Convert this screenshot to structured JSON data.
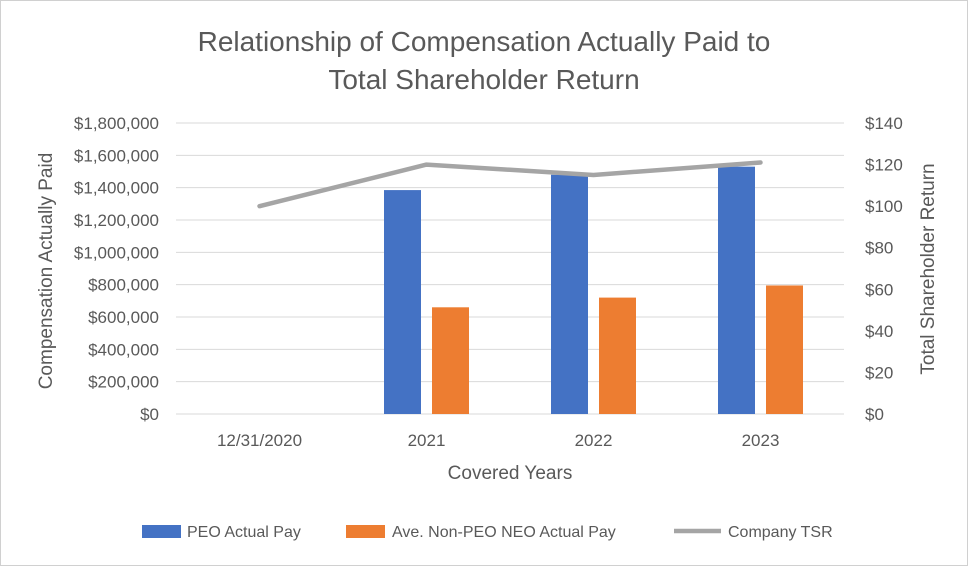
{
  "chart_data": {
    "type": "bar",
    "title_lines": [
      "Relationship of Compensation Actually Paid to",
      "Total Shareholder Return"
    ],
    "categories": [
      "12/31/2020",
      "2021",
      "2022",
      "2023"
    ],
    "series": [
      {
        "name": "PEO Actual Pay",
        "kind": "bar",
        "axis": "left",
        "color": "#4472C4",
        "values": [
          null,
          1385000,
          1480000,
          1530000
        ]
      },
      {
        "name": "Ave. Non-PEO NEO Actual Pay",
        "kind": "bar",
        "axis": "left",
        "color": "#ED7D31",
        "values": [
          null,
          660000,
          720000,
          795000
        ]
      },
      {
        "name": "Company TSR",
        "kind": "line",
        "axis": "right",
        "color": "#A5A5A5",
        "values": [
          100,
          120,
          115,
          121
        ]
      }
    ],
    "xlabel": "Covered Years",
    "ylabel": "Compensation Actually Paid",
    "y2label": "Total Shareholder Return",
    "ylim": [
      0,
      1800000
    ],
    "y2lim": [
      0,
      140
    ],
    "yticks": [
      "$0",
      "$200,000",
      "$400,000",
      "$600,000",
      "$800,000",
      "$1,000,000",
      "$1,200,000",
      "$1,400,000",
      "$1,600,000",
      "$1,800,000"
    ],
    "y2ticks": [
      "$0",
      "$20",
      "$40",
      "$60",
      "$80",
      "$100",
      "$120",
      "$140"
    ],
    "legend_position": "bottom",
    "grid": true
  }
}
